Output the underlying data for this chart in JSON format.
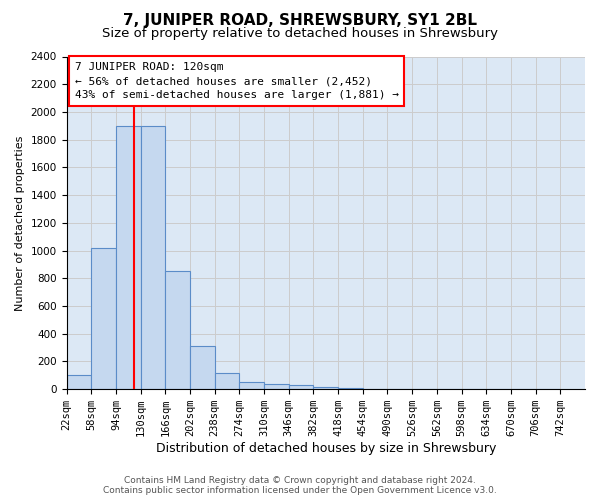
{
  "title": "7, JUNIPER ROAD, SHREWSBURY, SY1 2BL",
  "subtitle": "Size of property relative to detached houses in Shrewsbury",
  "xlabel": "Distribution of detached houses by size in Shrewsbury",
  "ylabel": "Number of detached properties",
  "footer_line1": "Contains HM Land Registry data © Crown copyright and database right 2024.",
  "footer_line2": "Contains public sector information licensed under the Open Government Licence v3.0.",
  "bin_labels": [
    "22sqm",
    "58sqm",
    "94sqm",
    "130sqm",
    "166sqm",
    "202sqm",
    "238sqm",
    "274sqm",
    "310sqm",
    "346sqm",
    "382sqm",
    "418sqm",
    "454sqm",
    "490sqm",
    "526sqm",
    "562sqm",
    "598sqm",
    "634sqm",
    "670sqm",
    "706sqm",
    "742sqm"
  ],
  "bin_edges": [
    22,
    58,
    94,
    130,
    166,
    202,
    238,
    274,
    310,
    346,
    382,
    418,
    454,
    490,
    526,
    562,
    598,
    634,
    670,
    706,
    742
  ],
  "bar_values": [
    100,
    1020,
    1900,
    1900,
    850,
    310,
    120,
    50,
    40,
    30,
    15,
    10,
    0,
    0,
    0,
    0,
    0,
    0,
    0,
    0
  ],
  "bar_color": "#c5d8ef",
  "bar_edge_color": "#5b8cc8",
  "property_size": 120,
  "annotation_line1": "7 JUNIPER ROAD: 120sqm",
  "annotation_line2": "← 56% of detached houses are smaller (2,452)",
  "annotation_line3": "43% of semi-detached houses are larger (1,881) →",
  "annotation_box_color": "white",
  "annotation_box_edge_color": "red",
  "vline_color": "red",
  "ylim_max": 2400,
  "ytick_step": 200,
  "grid_color": "#cccccc",
  "bg_color": "#dce8f5",
  "title_fontsize": 11,
  "subtitle_fontsize": 9.5,
  "ylabel_fontsize": 8,
  "xlabel_fontsize": 9,
  "tick_fontsize": 7.5,
  "annotation_fontsize": 8,
  "footer_fontsize": 6.5
}
